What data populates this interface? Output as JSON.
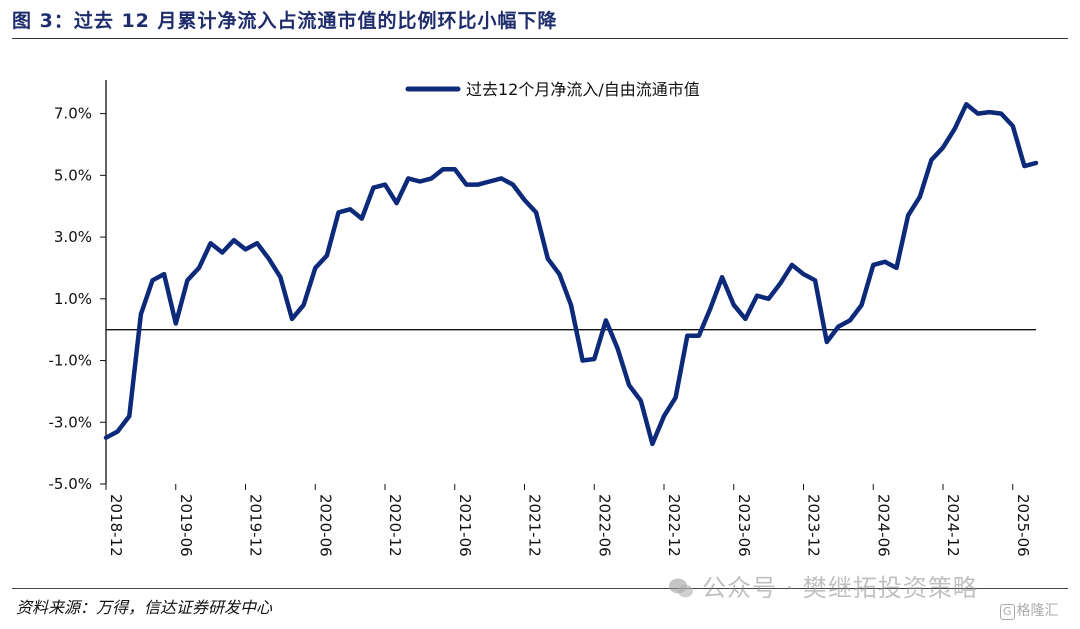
{
  "title": "图 3：过去 12 月累计净流入占流通市值的比例环比小幅下降",
  "source": "资料来源：万得，信达证券研发中心",
  "watermark": "公众号 · 樊继拓投资策略",
  "logo": "格隆汇",
  "colors": {
    "line": "#0d2a7a",
    "title": "#1f2d6d"
  },
  "chart_data": {
    "type": "line",
    "title": "",
    "xlabel": "",
    "ylabel": "",
    "legend_position": "top-center",
    "grid": false,
    "ylim": [
      -5.0,
      7.7
    ],
    "y_ticks": [
      -5.0,
      -3.0,
      -1.0,
      1.0,
      3.0,
      5.0,
      7.0
    ],
    "y_tick_labels": [
      "-5.0%",
      "-3.0%",
      "-1.0%",
      "1.0%",
      "3.0%",
      "5.0%",
      "7.0%"
    ],
    "x_tick_labels": [
      "2018-12",
      "2019-06",
      "2019-12",
      "2020-06",
      "2020-12",
      "2021-06",
      "2021-12",
      "2022-06",
      "2022-12",
      "2023-06",
      "2023-12",
      "2024-06",
      "2024-12",
      "2025-06"
    ],
    "series": [
      {
        "name": "过去12个月净流入/自由流通市值",
        "x": [
          "2018-12",
          "2019-01",
          "2019-02",
          "2019-03",
          "2019-04",
          "2019-05",
          "2019-06",
          "2019-07",
          "2019-08",
          "2019-09",
          "2019-10",
          "2019-11",
          "2019-12",
          "2020-01",
          "2020-02",
          "2020-03",
          "2020-04",
          "2020-05",
          "2020-06",
          "2020-07",
          "2020-08",
          "2020-09",
          "2020-10",
          "2020-11",
          "2020-12",
          "2021-01",
          "2021-02",
          "2021-03",
          "2021-04",
          "2021-05",
          "2021-06",
          "2021-07",
          "2021-08",
          "2021-09",
          "2021-10",
          "2021-11",
          "2021-12",
          "2022-01",
          "2022-02",
          "2022-03",
          "2022-04",
          "2022-05",
          "2022-06",
          "2022-07",
          "2022-08",
          "2022-09",
          "2022-10",
          "2022-11",
          "2022-12",
          "2023-01",
          "2023-02",
          "2023-03",
          "2023-04",
          "2023-05",
          "2023-06",
          "2023-07",
          "2023-08",
          "2023-09",
          "2023-10",
          "2023-11",
          "2023-12",
          "2024-01",
          "2024-02",
          "2024-03",
          "2024-04",
          "2024-05",
          "2024-06",
          "2024-07",
          "2024-08",
          "2024-09",
          "2024-10",
          "2024-11",
          "2024-12",
          "2025-01",
          "2025-02",
          "2025-03",
          "2025-04",
          "2025-05",
          "2025-06",
          "2025-07",
          "2025-08"
        ],
        "values": [
          -3.5,
          -3.3,
          -2.8,
          0.5,
          1.6,
          1.8,
          0.2,
          1.6,
          2.0,
          2.8,
          2.5,
          2.9,
          2.6,
          2.8,
          2.3,
          1.7,
          0.35,
          0.8,
          2.0,
          2.4,
          3.8,
          3.9,
          3.6,
          4.6,
          4.7,
          4.1,
          4.9,
          4.8,
          4.9,
          5.2,
          5.2,
          4.7,
          4.7,
          4.8,
          4.9,
          4.7,
          4.2,
          3.8,
          2.3,
          1.8,
          0.8,
          -1.0,
          -0.95,
          0.3,
          -0.6,
          -1.8,
          -2.3,
          -3.7,
          -2.8,
          -2.2,
          -0.2,
          -0.2,
          0.7,
          1.7,
          0.8,
          0.35,
          1.1,
          1.0,
          1.5,
          2.1,
          1.8,
          1.6,
          -0.4,
          0.1,
          0.3,
          0.8,
          2.1,
          2.2,
          2.0,
          3.7,
          4.3,
          5.5,
          5.9,
          6.5,
          7.3,
          7.0,
          7.05,
          7.0,
          6.6,
          5.3,
          5.4
        ]
      }
    ]
  }
}
